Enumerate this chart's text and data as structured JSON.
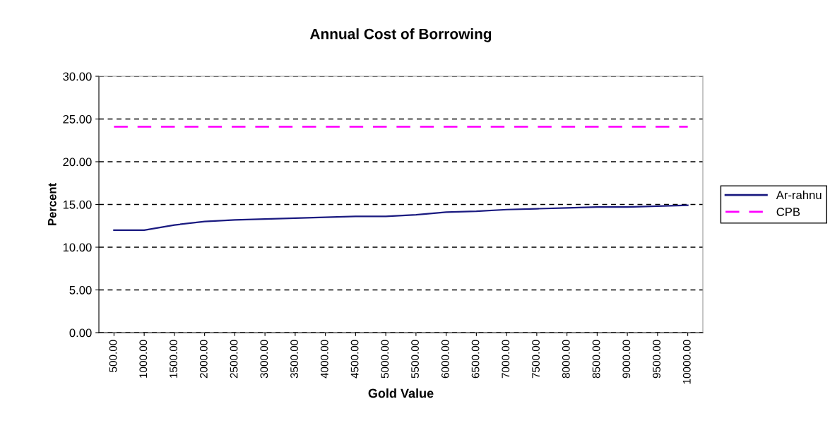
{
  "chart_data": {
    "type": "line",
    "title": "Annual Cost of Borrowing",
    "xlabel": "Gold Value",
    "ylabel": "Percent",
    "categories": [
      "500.00",
      "1000.00",
      "1500.00",
      "2000.00",
      "2500.00",
      "3000.00",
      "3500.00",
      "4000.00",
      "4500.00",
      "5000.00",
      "5500.00",
      "6000.00",
      "6500.00",
      "7000.00",
      "7500.00",
      "8000.00",
      "8500.00",
      "9000.00",
      "9500.00",
      "10000.00"
    ],
    "series": [
      {
        "name": "Ar-rahnu",
        "color": "#1a1a80",
        "line_style": "solid",
        "values": [
          12.0,
          12.0,
          12.6,
          13.0,
          13.2,
          13.3,
          13.4,
          13.5,
          13.6,
          13.6,
          13.8,
          14.1,
          14.2,
          14.4,
          14.5,
          14.6,
          14.7,
          14.7,
          14.8,
          14.9
        ]
      },
      {
        "name": "CPB",
        "color": "#ff00ff",
        "line_style": "dashed",
        "values": [
          24.1,
          24.1,
          24.1,
          24.1,
          24.1,
          24.1,
          24.1,
          24.1,
          24.1,
          24.1,
          24.1,
          24.1,
          24.1,
          24.1,
          24.1,
          24.1,
          24.1,
          24.1,
          24.1,
          24.1
        ]
      }
    ],
    "ylim": [
      0,
      30
    ],
    "yticks": [
      {
        "value": 0,
        "label": "0.00"
      },
      {
        "value": 5,
        "label": "5.00"
      },
      {
        "value": 10,
        "label": "10.00"
      },
      {
        "value": 15,
        "label": "15.00"
      },
      {
        "value": 20,
        "label": "20.00"
      },
      {
        "value": 25,
        "label": "25.00"
      },
      {
        "value": 30,
        "label": "30.00"
      }
    ],
    "grid": "y",
    "legend": "right",
    "marker": "none"
  }
}
